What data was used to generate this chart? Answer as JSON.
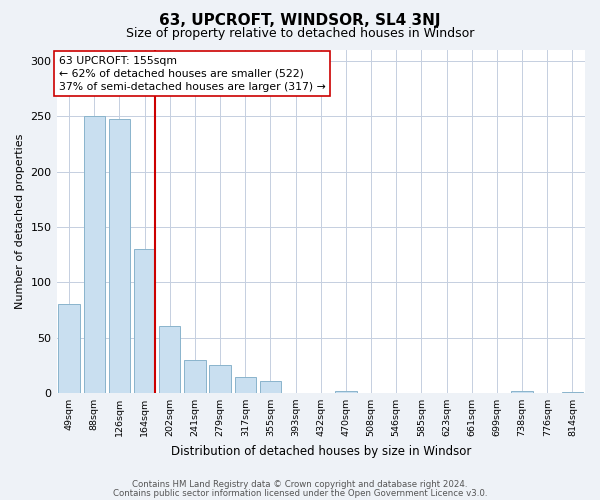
{
  "title": "63, UPCROFT, WINDSOR, SL4 3NJ",
  "subtitle": "Size of property relative to detached houses in Windsor",
  "xlabel": "Distribution of detached houses by size in Windsor",
  "ylabel": "Number of detached properties",
  "bar_labels": [
    "49sqm",
    "88sqm",
    "126sqm",
    "164sqm",
    "202sqm",
    "241sqm",
    "279sqm",
    "317sqm",
    "355sqm",
    "393sqm",
    "432sqm",
    "470sqm",
    "508sqm",
    "546sqm",
    "585sqm",
    "623sqm",
    "661sqm",
    "699sqm",
    "738sqm",
    "776sqm",
    "814sqm"
  ],
  "bar_values": [
    80,
    250,
    248,
    130,
    60,
    30,
    25,
    14,
    11,
    0,
    0,
    2,
    0,
    0,
    0,
    0,
    0,
    0,
    2,
    0,
    1
  ],
  "bar_color": "#c9dff0",
  "bar_edge_color": "#8ab4cc",
  "vline_color": "#cc0000",
  "annotation_title": "63 UPCROFT: 155sqm",
  "annotation_line1": "← 62% of detached houses are smaller (522)",
  "annotation_line2": "37% of semi-detached houses are larger (317) →",
  "ylim": [
    0,
    310
  ],
  "yticks": [
    0,
    50,
    100,
    150,
    200,
    250,
    300
  ],
  "footer_line1": "Contains HM Land Registry data © Crown copyright and database right 2024.",
  "footer_line2": "Contains public sector information licensed under the Open Government Licence v3.0.",
  "bg_color": "#eef2f7",
  "plot_bg_color": "#ffffff",
  "grid_color": "#c5cfe0"
}
